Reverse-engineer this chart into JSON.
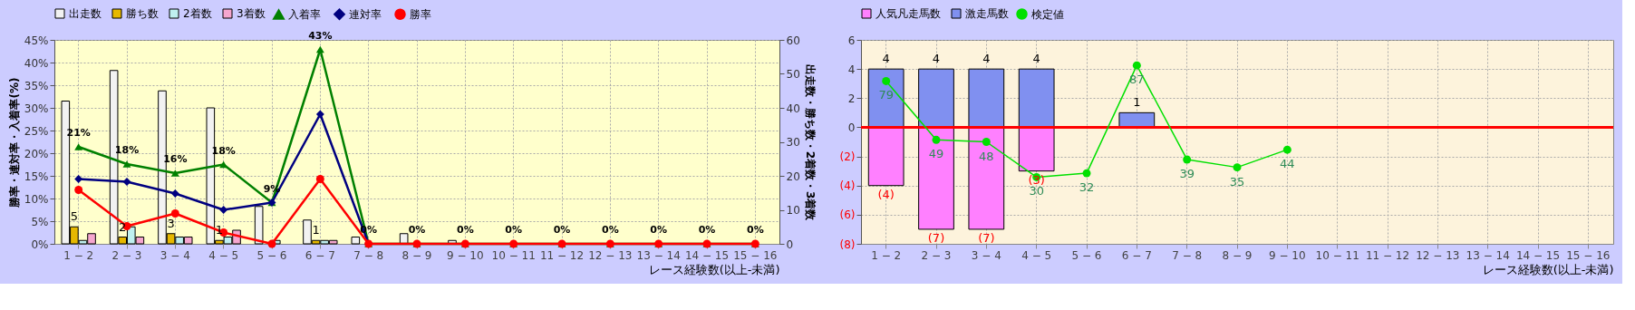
{
  "chart_data": [
    {
      "type": "bar",
      "categories": [
        "1 − 2",
        "2 − 3",
        "3 − 4",
        "4 − 5",
        "5 − 6",
        "6 − 7",
        "7 − 8",
        "8 − 9",
        "9 − 10",
        "10 − 11",
        "11 − 12",
        "12 − 13",
        "13 − 14",
        "14 − 15",
        "15 − 16"
      ],
      "xlabel": "レース経験数(以上-未満)",
      "ylabel": "勝率・連対率・入着率(%)",
      "y2label": "出走数・勝ち数・2着数・3着数",
      "ylim": [
        0,
        45
      ],
      "yticks": [
        {
          "value": 0,
          "label": "0%"
        },
        {
          "value": 5,
          "label": "5%"
        },
        {
          "value": 10,
          "label": "10%"
        },
        {
          "value": 15,
          "label": "15%"
        },
        {
          "value": 20,
          "label": "20%"
        },
        {
          "value": 25,
          "label": "25%"
        },
        {
          "value": 30,
          "label": "30%"
        },
        {
          "value": 35,
          "label": "35%"
        },
        {
          "value": 40,
          "label": "40%"
        },
        {
          "value": 45,
          "label": "45%"
        }
      ],
      "y2lim": [
        0,
        60
      ],
      "y2ticks": [
        0,
        10,
        20,
        30,
        40,
        50,
        60
      ],
      "grid": true,
      "legend": "top",
      "series": [
        {
          "name": "出走数",
          "type": "bar",
          "axis": "y2",
          "color": "#f2f2f2",
          "values": [
            42,
            51,
            45,
            40,
            11,
            7,
            2,
            3,
            1,
            0,
            0,
            0,
            0,
            0,
            0
          ]
        },
        {
          "name": "勝ち数",
          "type": "bar",
          "axis": "y2",
          "color": "#e6b800",
          "values": [
            5,
            2,
            3,
            1,
            0,
            1,
            0,
            0,
            0,
            0,
            0,
            0,
            0,
            0,
            0
          ],
          "value_labels": [
            "5",
            "2",
            "3",
            "1",
            null,
            "1",
            null,
            null,
            null,
            null,
            null,
            null,
            null,
            null,
            null
          ]
        },
        {
          "name": "2着数",
          "type": "bar",
          "axis": "y2",
          "color": "#bff0f0",
          "values": [
            1,
            5,
            2,
            2,
            1,
            1,
            0,
            0,
            0,
            0,
            0,
            0,
            0,
            0,
            0
          ]
        },
        {
          "name": "3着数",
          "type": "bar",
          "axis": "y2",
          "color": "#f5a6cf",
          "values": [
            3,
            2,
            2,
            4,
            0,
            1,
            0,
            0,
            0,
            0,
            0,
            0,
            0,
            0,
            0
          ]
        },
        {
          "name": "入着率",
          "type": "line",
          "axis": "y",
          "color": "#008000",
          "marker": "triangle",
          "values": [
            21.4,
            17.6,
            15.6,
            17.5,
            9.1,
            42.9,
            0,
            0,
            0,
            0,
            0,
            0,
            0,
            0,
            0
          ],
          "value_labels": [
            "21%",
            "18%",
            "16%",
            "18%",
            "9%",
            "43%",
            "0%",
            "0%",
            "0%",
            "0%",
            "0%",
            "0%",
            "0%",
            "0%",
            "0%"
          ]
        },
        {
          "name": "連対率",
          "type": "line",
          "axis": "y",
          "color": "#000080",
          "marker": "diamond",
          "values": [
            14.3,
            13.7,
            11.1,
            7.5,
            9.1,
            28.6,
            0,
            null,
            null,
            null,
            null,
            null,
            null,
            null,
            null
          ]
        },
        {
          "name": "勝率",
          "type": "line",
          "axis": "y",
          "color": "#ff0000",
          "marker": "circle",
          "values": [
            11.9,
            3.9,
            6.7,
            2.5,
            0,
            14.3,
            0,
            0,
            0,
            0,
            0,
            0,
            0,
            0,
            0
          ]
        }
      ]
    },
    {
      "type": "bar",
      "stacked": true,
      "categories": [
        "1 − 2",
        "2 − 3",
        "3 − 4",
        "4 − 5",
        "5 − 6",
        "6 − 7",
        "7 − 8",
        "8 − 9",
        "9 − 10",
        "10 − 11",
        "11 − 12",
        "12 − 13",
        "13 − 14",
        "14 − 15",
        "15 − 16"
      ],
      "xlabel": "レース経験数(以上-未満)",
      "ylim": [
        -8,
        6
      ],
      "yticks": [
        {
          "value": -8,
          "label": "(8)"
        },
        {
          "value": -6,
          "label": "(6)"
        },
        {
          "value": -4,
          "label": "(4)"
        },
        {
          "value": -2,
          "label": "(2)"
        },
        0,
        2,
        4,
        6
      ],
      "y2lim": [
        -4,
        100
      ],
      "tick_labels": "xy",
      "grid": true,
      "legend": "top",
      "ref_lines": [
        {
          "axis": "y",
          "value": 0,
          "color": "#ff0000"
        }
      ],
      "series": [
        {
          "name": "人気凡走馬数",
          "type": "bar",
          "axis": "y",
          "color": "#ff80ff",
          "values": [
            -4,
            -7,
            -7,
            -3,
            null,
            null,
            null,
            null,
            null,
            null,
            null,
            null,
            null,
            null,
            null
          ],
          "value_labels": [
            "(4)",
            "(7)",
            "(7)",
            "(3)",
            null,
            null,
            null,
            null,
            null,
            null,
            null,
            null,
            null,
            null,
            null
          ]
        },
        {
          "name": "激走馬数",
          "type": "bar",
          "axis": "y",
          "color": "#8090f0",
          "values": [
            4,
            4,
            4,
            4,
            null,
            1,
            null,
            null,
            null,
            null,
            null,
            null,
            null,
            null,
            null
          ],
          "value_labels": [
            "4",
            "4",
            "4",
            "4",
            null,
            "1",
            null,
            null,
            null,
            null,
            null,
            null,
            null,
            null,
            null
          ]
        },
        {
          "name": "検定値",
          "type": "line",
          "axis": "y2",
          "color": "#00e000",
          "marker": "circle",
          "values": [
            79,
            49,
            48,
            30,
            32,
            87,
            39,
            35,
            44,
            null,
            null,
            null,
            null,
            null,
            null
          ],
          "value_labels": [
            "79",
            "49",
            "48",
            "30",
            "32",
            "87",
            "39",
            "35",
            "44",
            null,
            null,
            null,
            null,
            null,
            null
          ]
        }
      ]
    }
  ]
}
